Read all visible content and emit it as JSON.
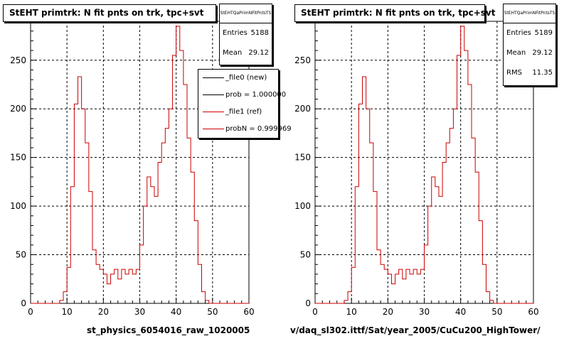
{
  "chart_data": [
    {
      "type": "histogram",
      "title": "StEHT primtrk: N fit pnts on trk, tpc+svt",
      "xlabel": "st_physics_6054016_raw_1020005",
      "xlim": [
        0,
        60
      ],
      "ylim": [
        0,
        290
      ],
      "xticks": [
        "0",
        "10",
        "20",
        "30",
        "40",
        "50",
        "60"
      ],
      "yticks": [
        "0",
        "50",
        "100",
        "150",
        "200",
        "250"
      ],
      "grid": true,
      "stats": {
        "header": "StEHTQaPrimNFitPntsTS",
        "rows": [
          {
            "key": "Entries",
            "value": "5188"
          },
          {
            "key": "Mean",
            "value": "29.12"
          }
        ]
      },
      "legend": {
        "placement": "top-right",
        "entries": [
          {
            "label": "_file0 (new)",
            "color": "#000000"
          },
          {
            "label": "prob = 1.000000",
            "color": "#000000"
          },
          {
            "label": "_file1 (ref)",
            "color": "#cc0000"
          },
          {
            "label": "probN = 0.999969",
            "color": "#cc0000"
          }
        ]
      },
      "bin_width": 1,
      "values": [
        0,
        0,
        0,
        0,
        0,
        0,
        0,
        0,
        3,
        12,
        37,
        120,
        205,
        233,
        200,
        165,
        115,
        55,
        40,
        35,
        30,
        20,
        30,
        35,
        25,
        35,
        30,
        35,
        30,
        35,
        60,
        100,
        130,
        120,
        110,
        145,
        165,
        180,
        200,
        255,
        285,
        260,
        225,
        170,
        135,
        85,
        40,
        12,
        3,
        0,
        0,
        0,
        0,
        0,
        0,
        0,
        0,
        0,
        0,
        0
      ]
    },
    {
      "type": "histogram",
      "title": "StEHT primtrk: N fit pnts on trk, tpc+svt",
      "xlabel": "v/daq_sl302.ittf/Sat/year_2005/CuCu200_HighTower/",
      "xlim": [
        0,
        60
      ],
      "ylim": [
        0,
        290
      ],
      "xticks": [
        "0",
        "10",
        "20",
        "30",
        "40",
        "50",
        "60"
      ],
      "yticks": [
        "0",
        "50",
        "100",
        "150",
        "200",
        "250"
      ],
      "grid": true,
      "stats": {
        "header": "StEHTQaPrimNFitPntsTS",
        "rows": [
          {
            "key": "Entries",
            "value": "5189"
          },
          {
            "key": "Mean",
            "value": "29.12"
          },
          {
            "key": "RMS",
            "value": "11.35"
          }
        ]
      },
      "bin_width": 1,
      "values": [
        0,
        0,
        0,
        0,
        0,
        0,
        0,
        0,
        3,
        12,
        37,
        120,
        205,
        233,
        200,
        165,
        115,
        55,
        40,
        35,
        30,
        20,
        30,
        35,
        25,
        35,
        30,
        35,
        30,
        35,
        60,
        100,
        130,
        120,
        110,
        145,
        165,
        180,
        200,
        255,
        285,
        260,
        225,
        170,
        135,
        85,
        40,
        12,
        3,
        0,
        0,
        0,
        0,
        0,
        0,
        0,
        0,
        0,
        0,
        0
      ]
    }
  ],
  "colors": {
    "histogram_line": "#cc0000",
    "grid": "#000000",
    "axis": "#000000"
  }
}
